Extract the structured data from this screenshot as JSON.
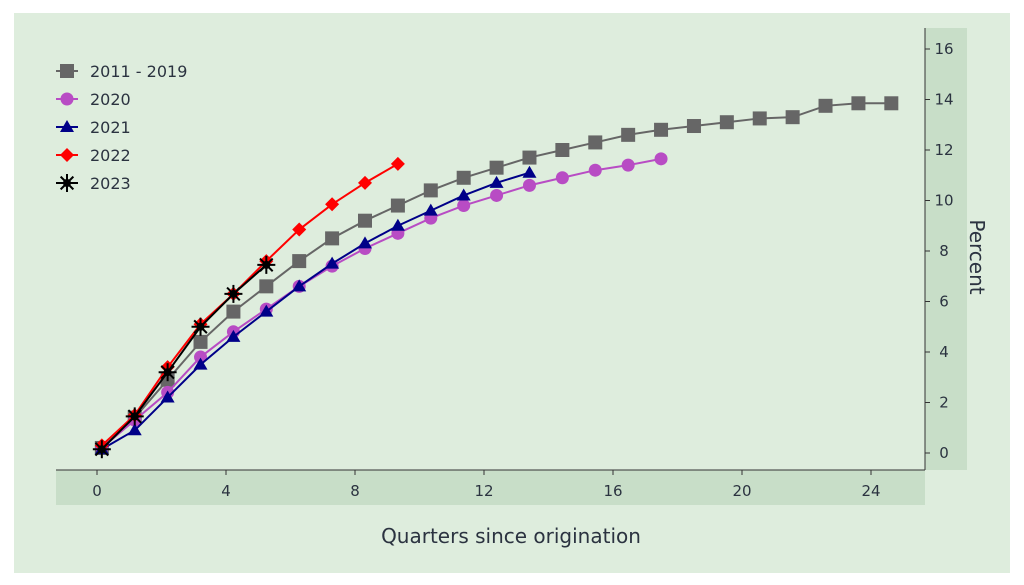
{
  "chart_data": {
    "type": "line",
    "title": "",
    "xlabel": "Quarters since origination",
    "ylabel": "Percent",
    "xlim": [
      -2.5,
      25.5
    ],
    "ylim": [
      -0.6,
      16.8
    ],
    "xticks": [
      0,
      4,
      8,
      12,
      16,
      20,
      24
    ],
    "yticks": [
      0,
      2,
      4,
      6,
      8,
      10,
      12,
      14,
      16
    ],
    "legend_position": "top-left",
    "grid": false,
    "x_start": 0.15,
    "x_step": 1.02,
    "series": [
      {
        "name": "2011 - 2019",
        "color": "#666666",
        "marker": "square",
        "values": [
          0.2,
          1.4,
          2.9,
          4.4,
          5.6,
          6.6,
          7.6,
          8.5,
          9.2,
          9.8,
          10.4,
          10.9,
          11.3,
          11.7,
          12.0,
          12.3,
          12.6,
          12.8,
          12.95,
          13.1,
          13.25,
          13.3,
          13.75,
          13.85,
          13.85
        ]
      },
      {
        "name": "2020",
        "color": "#b84cc4",
        "marker": "circle",
        "values": [
          0.2,
          1.3,
          2.4,
          3.8,
          4.8,
          5.7,
          6.6,
          7.4,
          8.1,
          8.7,
          9.3,
          9.8,
          10.2,
          10.6,
          10.9,
          11.2,
          11.4,
          11.65
        ]
      },
      {
        "name": "2021",
        "color": "#000088",
        "marker": "triangle",
        "values": [
          0.15,
          0.9,
          2.2,
          3.5,
          4.6,
          5.6,
          6.6,
          7.5,
          8.3,
          9.0,
          9.6,
          10.2,
          10.7,
          11.1
        ]
      },
      {
        "name": "2022",
        "color": "#ff0000",
        "marker": "diamond",
        "values": [
          0.3,
          1.5,
          3.4,
          5.1,
          6.3,
          7.6,
          8.85,
          9.85,
          10.7,
          11.45
        ]
      },
      {
        "name": "2023",
        "color": "#000000",
        "marker": "star",
        "values": [
          0.15,
          1.45,
          3.2,
          5.0,
          6.3,
          7.45
        ]
      }
    ]
  }
}
